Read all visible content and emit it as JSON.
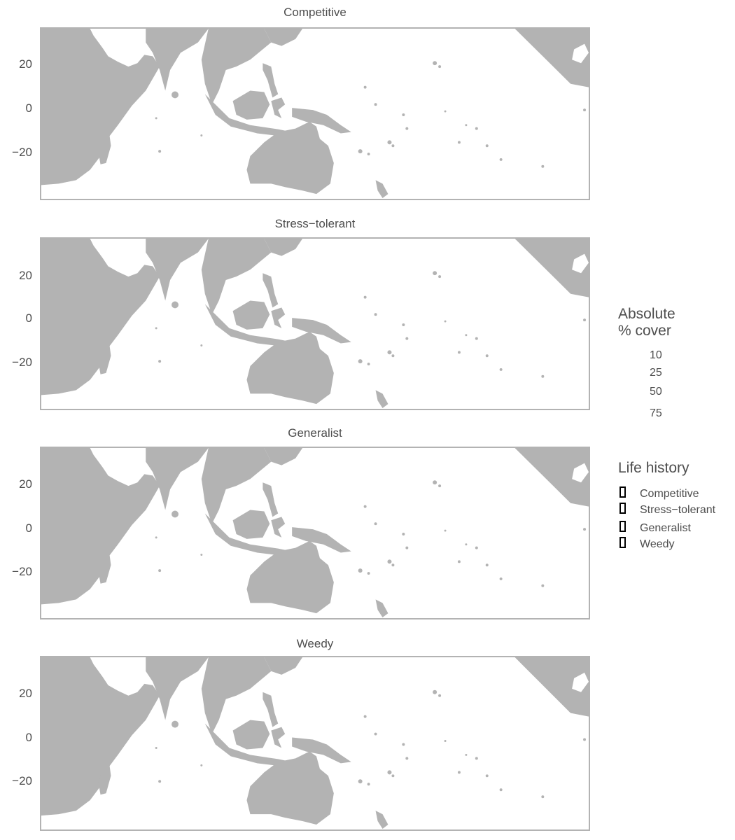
{
  "panels": [
    {
      "title": "Competitive"
    },
    {
      "title": "Stress−tolerant"
    },
    {
      "title": "Generalist"
    },
    {
      "title": "Weedy"
    }
  ],
  "y_axis": {
    "ticks": [
      "20",
      "0",
      "−20"
    ]
  },
  "legend_cover": {
    "title_line1": "Absolute",
    "title_line2": "% cover",
    "sizes": [
      "10",
      "25",
      "50",
      "75"
    ]
  },
  "legend_life_history": {
    "title": "Life history",
    "items": [
      "Competitive",
      "Stress−tolerant",
      "Generalist",
      "Weedy"
    ]
  },
  "colors": {
    "land": "#b3b3b3",
    "ocean": "#ffffff",
    "frame": "#b3b3b3",
    "key_outline": "#000000"
  }
}
